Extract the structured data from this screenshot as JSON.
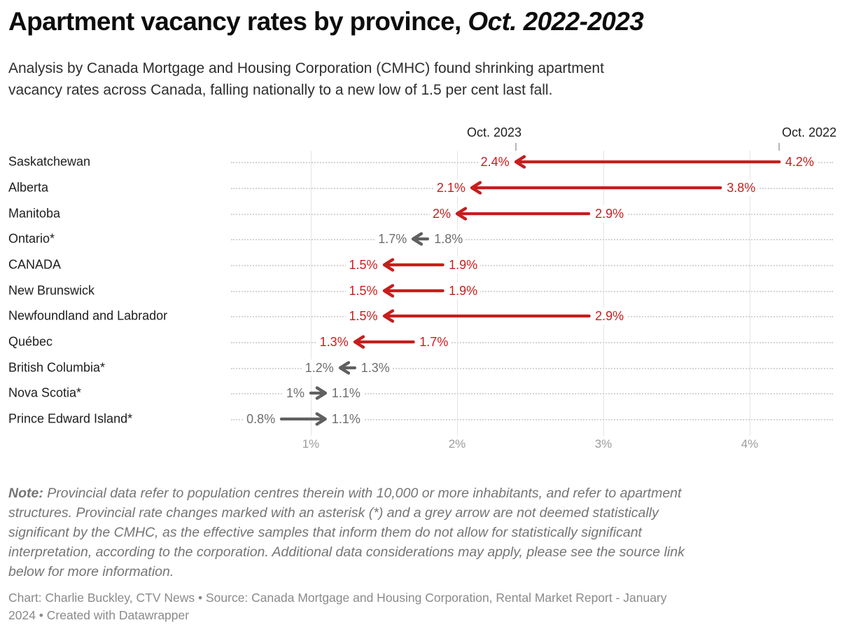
{
  "header": {
    "title_regular": "Apartment vacancy rates by province, ",
    "title_italic": "Oct. 2022-2023",
    "subtitle": "Analysis by Canada Mortgage and Housing Corporation (CMHC) found shrinking apartment\nvacancy rates across Canada, falling nationally to a new low of 1.5 per cent last fall."
  },
  "chart_data": {
    "type": "arrow",
    "title": "Apartment vacancy rates by province, Oct. 2022-2023",
    "unit": "percent",
    "column_headers": {
      "left": "Oct. 2023",
      "right": "Oct. 2022"
    },
    "x_axis": {
      "tick_labels": [
        "1%",
        "2%",
        "3%",
        "4%"
      ],
      "tick_values": [
        1,
        2,
        3,
        4
      ],
      "range": [
        0.45,
        4.6
      ],
      "grid": true
    },
    "rows": [
      {
        "label": "Saskatchewan",
        "oct_2023": 2.4,
        "oct_2022": 4.2,
        "display_2023": "2.4%",
        "display_2022": "4.2%",
        "significant": true
      },
      {
        "label": "Alberta",
        "oct_2023": 2.1,
        "oct_2022": 3.8,
        "display_2023": "2.1%",
        "display_2022": "3.8%",
        "significant": true
      },
      {
        "label": "Manitoba",
        "oct_2023": 2.0,
        "oct_2022": 2.9,
        "display_2023": "2%",
        "display_2022": "2.9%",
        "significant": true
      },
      {
        "label": "Ontario*",
        "oct_2023": 1.7,
        "oct_2022": 1.8,
        "display_2023": "1.7%",
        "display_2022": "1.8%",
        "significant": false
      },
      {
        "label": "CANADA",
        "oct_2023": 1.5,
        "oct_2022": 1.9,
        "display_2023": "1.5%",
        "display_2022": "1.9%",
        "significant": true
      },
      {
        "label": "New Brunswick",
        "oct_2023": 1.5,
        "oct_2022": 1.9,
        "display_2023": "1.5%",
        "display_2022": "1.9%",
        "significant": true
      },
      {
        "label": "Newfoundland and Labrador",
        "oct_2023": 1.5,
        "oct_2022": 2.9,
        "display_2023": "1.5%",
        "display_2022": "2.9%",
        "significant": true
      },
      {
        "label": "Québec",
        "oct_2023": 1.3,
        "oct_2022": 1.7,
        "display_2023": "1.3%",
        "display_2022": "1.7%",
        "significant": true
      },
      {
        "label": "British Columbia*",
        "oct_2023": 1.2,
        "oct_2022": 1.3,
        "display_2023": "1.2%",
        "display_2022": "1.3%",
        "significant": false
      },
      {
        "label": "Nova Scotia*",
        "oct_2023": 1.1,
        "oct_2022": 1.0,
        "display_2023": "1.1%",
        "display_2022": "1%",
        "significant": false
      },
      {
        "label": "Prince Edward Island*",
        "oct_2023": 1.1,
        "oct_2022": 0.8,
        "display_2023": "1.1%",
        "display_2022": "0.8%",
        "significant": false
      }
    ]
  },
  "colors": {
    "significant_arrow": "#c71e1d",
    "insignificant_arrow": "#606060",
    "grid": "#e4e4e4",
    "dotted_leader": "#d4d4d4",
    "axis_text": "#9c9c9c",
    "column_tick": "#b5b5b5",
    "row_label_text": "#1d1d1d",
    "note_text": "#757575",
    "footer_text": "#8a8a8a"
  },
  "note": {
    "prefix": "Note:",
    "body": " Provincial data refer to population centres therein with 10,000 or more inhabitants, and refer to apartment\nstructures. Provincial rate changes marked with an asterisk (*) and a grey arrow are not deemed statistically\nsignificant by the CMHC, as the effective samples that inform them do not allow for statistically significant\ninterpretation, according to the corporation. Additional data considerations may apply, please see the source link\nbelow for more information."
  },
  "footer": {
    "text": "Chart: Charlie Buckley, CTV News • Source: Canada Mortgage and Housing Corporation, Rental Market Report - January\n2024 • Created with Datawrapper"
  }
}
